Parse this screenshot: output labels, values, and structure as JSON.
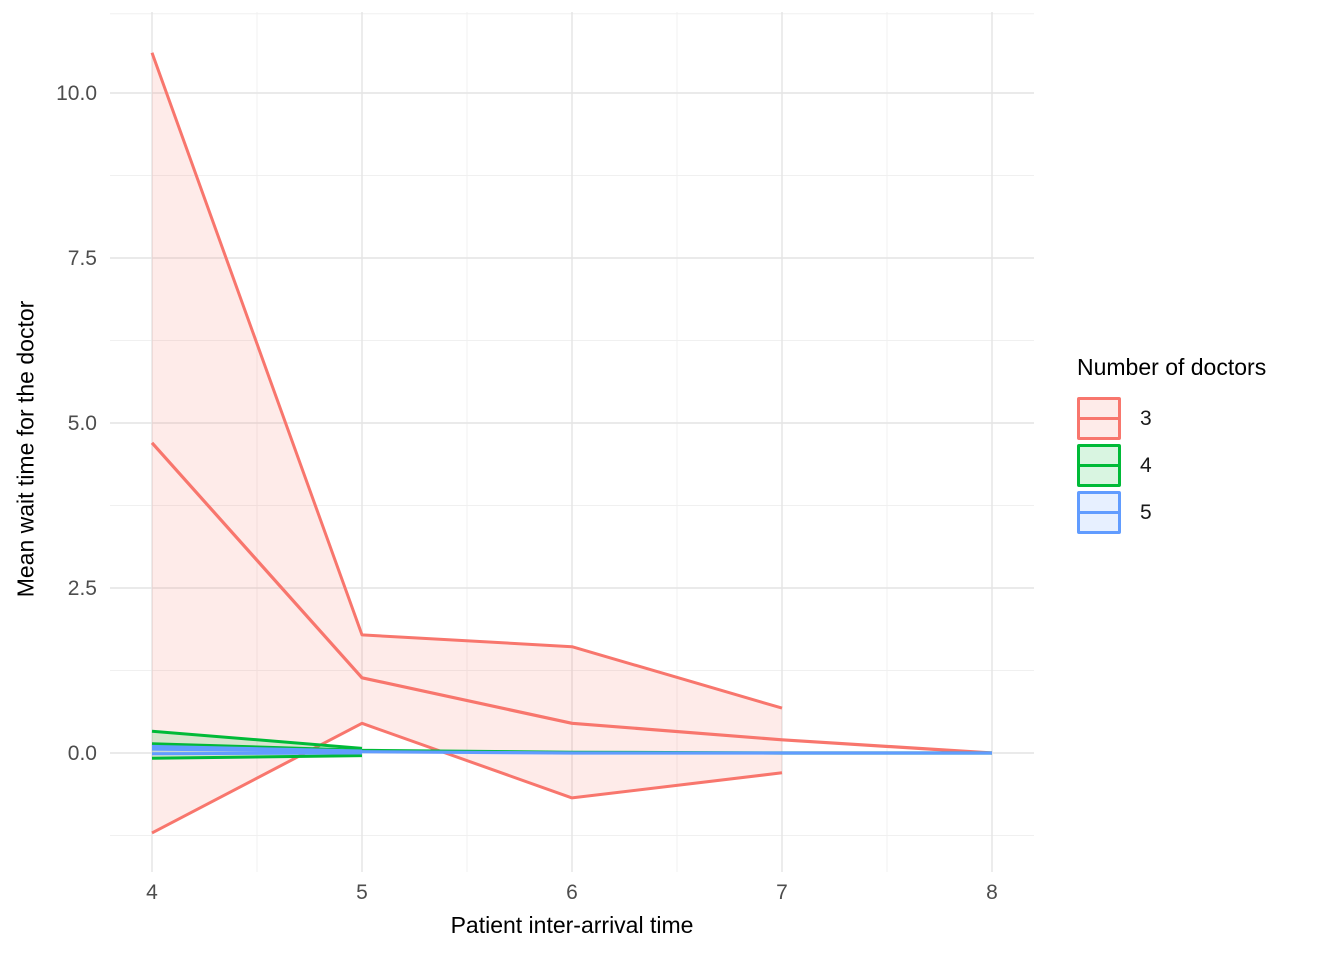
{
  "chart_data": {
    "type": "area",
    "title": "",
    "xlabel": "Patient inter-arrival time",
    "ylabel": "Mean wait time for the doctor",
    "x_tick_labels": [
      "4",
      "5",
      "6",
      "7",
      "8"
    ],
    "x_tick_values": [
      4,
      5,
      6,
      7,
      8
    ],
    "y_tick_labels": [
      "0.0",
      "2.5",
      "5.0",
      "7.5",
      "10.0"
    ],
    "y_tick_values": [
      0,
      2.5,
      5,
      7.5,
      10
    ],
    "xlim": [
      3.8,
      8.2
    ],
    "ylim": [
      -1.8,
      11.2
    ],
    "grid": "major and minor gridlines, no axis lines, no tick marks",
    "legend": {
      "title": "Number of doctors",
      "position": "right",
      "entries": [
        "3",
        "4",
        "5"
      ]
    },
    "series": [
      {
        "name": "3",
        "color": "#F8766D",
        "fill": "rgba(248,118,109,0.15)",
        "x": [
          4,
          5,
          6,
          7,
          8
        ],
        "mean": [
          4.7,
          1.14,
          0.45,
          0.2,
          0.0
        ],
        "band_x": [
          4,
          5,
          6,
          7
        ],
        "upper": [
          10.61,
          1.79,
          1.61,
          0.68
        ],
        "lower": [
          -1.21,
          0.45,
          -0.68,
          -0.3
        ]
      },
      {
        "name": "4",
        "color": "#00BA38",
        "fill": "rgba(0,186,56,0.15)",
        "x": [
          4,
          5,
          6,
          7,
          8
        ],
        "mean": [
          0.14,
          0.04,
          0.01,
          0.0,
          0.0
        ],
        "band_x": [
          4,
          5
        ],
        "upper": [
          0.33,
          0.07
        ],
        "lower": [
          -0.08,
          -0.04
        ]
      },
      {
        "name": "5",
        "color": "#619CFF",
        "fill": "rgba(97,156,255,0.15)",
        "x": [
          4,
          5,
          6,
          7,
          8
        ],
        "mean": [
          0.06,
          0.02,
          0.0,
          0.0,
          0.0
        ],
        "band_x": [
          4,
          5
        ],
        "upper": [
          0.1,
          0.03
        ],
        "lower": [
          -0.01,
          0.0
        ]
      }
    ],
    "style": {
      "grid_major_color": "#E4E4E4",
      "grid_minor_color": "#F0F0F0",
      "tick_label_color": "#4D4D4D",
      "axis_title_color": "#000000",
      "background": "#FFFFFF"
    }
  }
}
